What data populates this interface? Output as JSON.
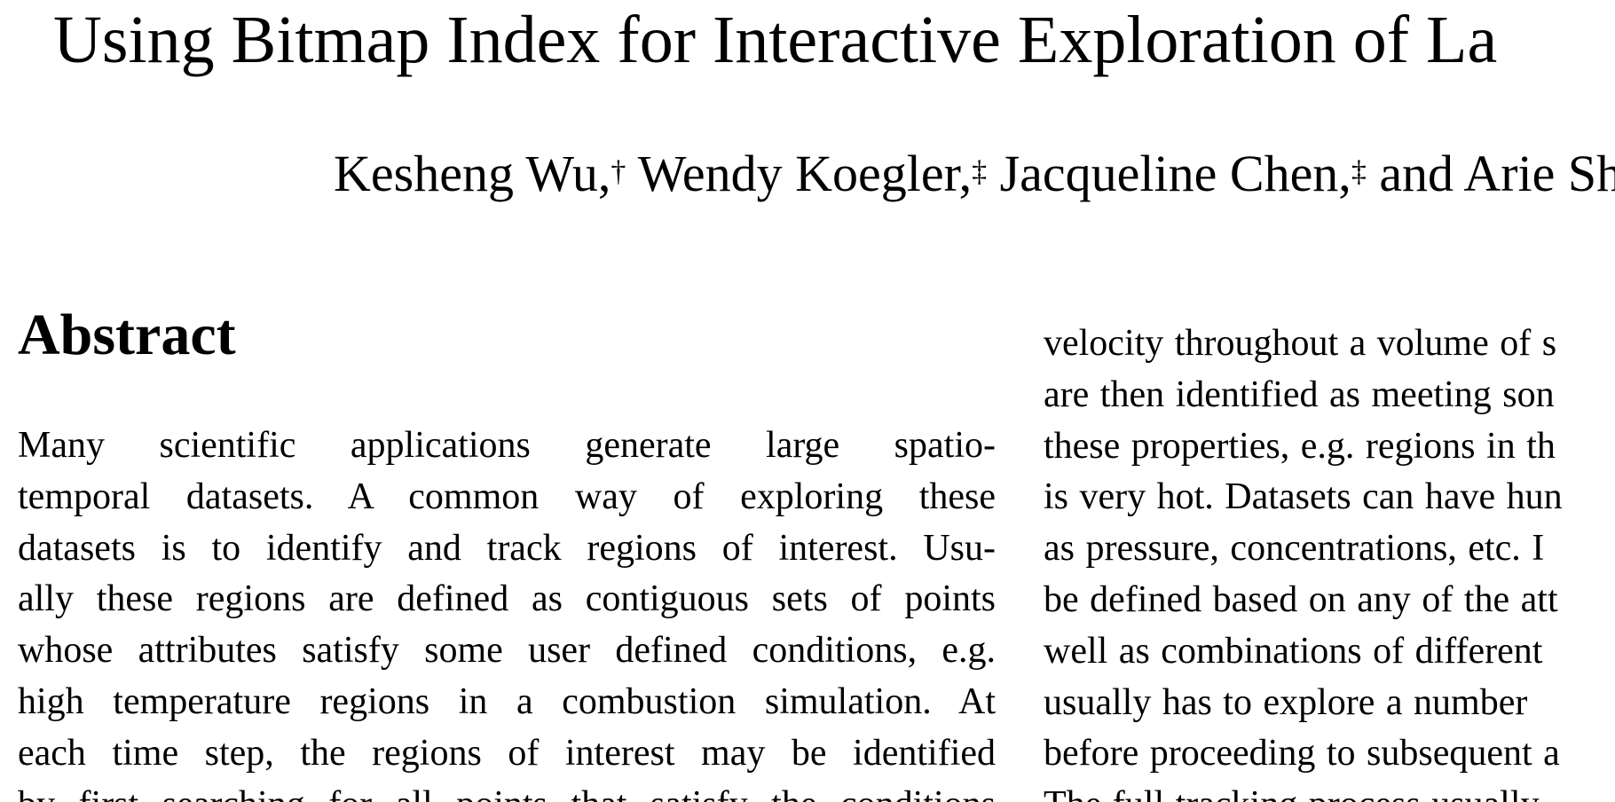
{
  "title": "Using Bitmap Index for Interactive Exploration of La",
  "authors": [
    {
      "name": "Kesheng Wu,",
      "mark": "†"
    },
    {
      "name": "Wendy Koegler,",
      "mark": "‡"
    },
    {
      "name": "Jacqueline Chen,",
      "mark": "‡"
    },
    {
      "name": "and Arie Shos",
      "mark": ""
    }
  ],
  "abstract": {
    "heading": "Abstract",
    "left_column_lines": [
      "Many scientific applications generate large spatio-",
      "temporal datasets. A common way of exploring these",
      "datasets is to identify and track regions of interest. Usu-",
      "ally these regions are defined as contiguous sets of points",
      "whose attributes satisfy some user defined conditions, e.g.",
      "high temperature regions in a combustion simulation. At",
      "each time step, the regions of interest may be identified",
      "by first searching for all points that satisfy the conditions"
    ],
    "right_column_lines": [
      "velocity throughout a volume of s",
      "are then identified as meeting son",
      "these properties, e.g. regions in th",
      "is very hot. Datasets can have hun",
      "as pressure, concentrations, etc. I",
      "be defined based on any of the att",
      "well as combinations of different",
      "usually has to explore a number",
      "before proceeding to subsequent a",
      "The full tracking process usually"
    ]
  }
}
